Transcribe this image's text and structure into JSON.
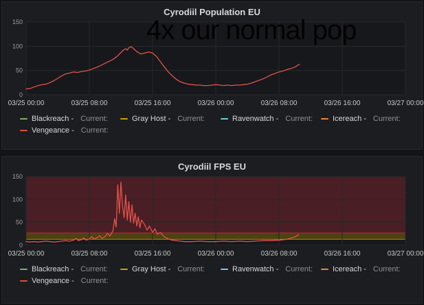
{
  "overlay_text": "4x our normal pop",
  "colors": {
    "page_bg": "#131416",
    "panel_bg": "#1b1d20",
    "plot_bg": "#17181b",
    "grid": "#26282c",
    "axis_text": "#9aa0a6",
    "x_axis_text": "#c8c9ca",
    "title_text": "#d8d9da",
    "line_red": "#e45349"
  },
  "panels": [
    {
      "title": "Cyrodiil Population EU",
      "legend": {
        "items": [
          {
            "label": "Blackreach -",
            "color": "#7eb26d",
            "current": "Current:",
            "value": ""
          },
          {
            "label": "Gray Host -",
            "color": "#cca300",
            "current": "Current:",
            "value": ""
          },
          {
            "label": "Ravenwatch -",
            "color": "#6ed0e0",
            "current": "Current:",
            "value": ""
          },
          {
            "label": "Icereach -",
            "color": "#ef843c",
            "current": "Current:",
            "value": ""
          },
          {
            "label": "Vengeance -",
            "color": "#e24d42",
            "current": "Current:",
            "value": ""
          }
        ]
      }
    },
    {
      "title": "Cyrodiil FPS EU",
      "legend": {
        "items": [
          {
            "label": "Blackreach -",
            "color": "#7eb26d",
            "current": "Current:",
            "value": ""
          },
          {
            "label": "Gray Host -",
            "color": "#cca300",
            "current": "Current:",
            "value": ""
          },
          {
            "label": "Ravenwatch -",
            "color": "#6ed0e0",
            "current": "Current:",
            "value": ""
          },
          {
            "label": "Icereach -",
            "color": "#ef843c",
            "current": "Current:",
            "value": ""
          },
          {
            "label": "Vengeance -",
            "color": "#e24d42",
            "current": "Current:",
            "value": ""
          }
        ]
      }
    }
  ],
  "chart_data": [
    {
      "type": "line",
      "title": "Cyrodiil Population EU",
      "annotation": "4x our normal pop",
      "x_ticks": [
        "03/25 00:00",
        "03/25 08:00",
        "03/25 16:00",
        "03/26 00:00",
        "03/26 08:00",
        "03/26 16:00",
        "03/27 00:00"
      ],
      "x_range_hours": [
        0,
        48
      ],
      "ylim": [
        0,
        150
      ],
      "y_ticks": [
        0,
        50,
        100,
        150
      ],
      "grid": true,
      "legend_position": "bottom",
      "series": [
        {
          "name": "Vengeance",
          "color": "#e45349",
          "points": [
            [
              0,
              12
            ],
            [
              0.5,
              13
            ],
            [
              1,
              16
            ],
            [
              1.5,
              19
            ],
            [
              2,
              21
            ],
            [
              2.5,
              22
            ],
            [
              3,
              25
            ],
            [
              3.5,
              29
            ],
            [
              4,
              34
            ],
            [
              4.5,
              39
            ],
            [
              5,
              43
            ],
            [
              5.5,
              45
            ],
            [
              6,
              47
            ],
            [
              6.5,
              46
            ],
            [
              7,
              48
            ],
            [
              7.5,
              49
            ],
            [
              8,
              51
            ],
            [
              8.5,
              54
            ],
            [
              9,
              57
            ],
            [
              9.5,
              61
            ],
            [
              10,
              65
            ],
            [
              10.5,
              69
            ],
            [
              11,
              73
            ],
            [
              11.5,
              79
            ],
            [
              12,
              87
            ],
            [
              12.3,
              92
            ],
            [
              12.6,
              95
            ],
            [
              12.8,
              92
            ],
            [
              13,
              97
            ],
            [
              13.3,
              99
            ],
            [
              13.6,
              95
            ],
            [
              14,
              89
            ],
            [
              14.5,
              84
            ],
            [
              15,
              86
            ],
            [
              15.5,
              88
            ],
            [
              16,
              86
            ],
            [
              16.5,
              79
            ],
            [
              17,
              68
            ],
            [
              17.5,
              57
            ],
            [
              18,
              47
            ],
            [
              18.5,
              39
            ],
            [
              19,
              32
            ],
            [
              19.5,
              27
            ],
            [
              20,
              24
            ],
            [
              20.5,
              22
            ],
            [
              21,
              21
            ],
            [
              21.5,
              20
            ],
            [
              22,
              20
            ],
            [
              22.5,
              19
            ],
            [
              23,
              19
            ],
            [
              23.5,
              20
            ],
            [
              24,
              21
            ],
            [
              24.5,
              20
            ],
            [
              25,
              19
            ],
            [
              25.5,
              20
            ],
            [
              26,
              19
            ],
            [
              26.5,
              20
            ],
            [
              27,
              20
            ],
            [
              27.5,
              21
            ],
            [
              28,
              22
            ],
            [
              28.5,
              24
            ],
            [
              29,
              27
            ],
            [
              29.5,
              30
            ],
            [
              30,
              33
            ],
            [
              30.5,
              37
            ],
            [
              31,
              41
            ],
            [
              31.5,
              44
            ],
            [
              32,
              47
            ],
            [
              32.5,
              49
            ],
            [
              33,
              52
            ],
            [
              33.5,
              54
            ],
            [
              34,
              57
            ],
            [
              34.3,
              60
            ],
            [
              34.6,
              63
            ]
          ]
        }
      ]
    },
    {
      "type": "line",
      "title": "Cyrodiil FPS EU",
      "x_ticks": [
        "03/25 00:00",
        "03/25 08:00",
        "03/25 16:00",
        "03/26 00:00",
        "03/26 08:00",
        "03/26 16:00",
        "03/27 00:00"
      ],
      "x_range_hours": [
        0,
        48
      ],
      "ylim": [
        0,
        150
      ],
      "y_ticks": [
        0,
        50,
        100,
        150
      ],
      "grid": true,
      "legend_position": "bottom",
      "thresholds": [
        {
          "from": 13,
          "to": 27,
          "color": "rgba(204,163,0,0.30)",
          "line_color": "rgba(204,163,0,0.8)"
        },
        {
          "from": 27,
          "to": 150,
          "color": "rgba(224,47,68,0.25)",
          "line_color": "rgba(224,47,68,0.6)"
        }
      ],
      "series": [
        {
          "name": "Vengeance",
          "color": "#e45349",
          "points": [
            [
              0,
              8
            ],
            [
              0.5,
              7
            ],
            [
              1,
              8
            ],
            [
              1.5,
              7
            ],
            [
              2,
              8
            ],
            [
              2.5,
              9
            ],
            [
              3,
              8
            ],
            [
              3.5,
              7
            ],
            [
              4,
              8
            ],
            [
              4.5,
              9
            ],
            [
              5,
              10
            ],
            [
              5.5,
              9
            ],
            [
              6,
              11
            ],
            [
              6.3,
              15
            ],
            [
              6.6,
              10
            ],
            [
              7,
              12
            ],
            [
              7.3,
              16
            ],
            [
              7.6,
              11
            ],
            [
              8,
              14
            ],
            [
              8.3,
              19
            ],
            [
              8.6,
              13
            ],
            [
              9,
              17
            ],
            [
              9.3,
              21
            ],
            [
              9.6,
              15
            ],
            [
              10,
              19
            ],
            [
              10.3,
              26
            ],
            [
              10.6,
              20
            ],
            [
              11,
              32
            ],
            [
              11.2,
              58
            ],
            [
              11.4,
              40
            ],
            [
              11.6,
              132
            ],
            [
              11.8,
              70
            ],
            [
              12,
              138
            ],
            [
              12.2,
              85
            ],
            [
              12.4,
              60
            ],
            [
              12.6,
              110
            ],
            [
              12.8,
              55
            ],
            [
              13,
              95
            ],
            [
              13.2,
              50
            ],
            [
              13.4,
              88
            ],
            [
              13.6,
              48
            ],
            [
              13.8,
              70
            ],
            [
              14,
              42
            ],
            [
              14.2,
              62
            ],
            [
              14.4,
              38
            ],
            [
              14.6,
              55
            ],
            [
              15,
              45
            ],
            [
              15.3,
              33
            ],
            [
              15.6,
              42
            ],
            [
              16,
              28
            ],
            [
              16.3,
              36
            ],
            [
              16.6,
              24
            ],
            [
              17,
              28
            ],
            [
              17.5,
              18
            ],
            [
              18,
              14
            ],
            [
              18.5,
              11
            ],
            [
              19,
              10
            ],
            [
              19.5,
              9
            ],
            [
              20,
              8
            ],
            [
              21,
              8
            ],
            [
              22,
              9
            ],
            [
              23,
              8
            ],
            [
              24,
              8
            ],
            [
              25,
              9
            ],
            [
              26,
              8
            ],
            [
              27,
              9
            ],
            [
              28,
              8
            ],
            [
              29,
              9
            ],
            [
              30,
              10
            ],
            [
              31,
              10
            ],
            [
              32,
              11
            ],
            [
              33,
              13
            ],
            [
              34,
              18
            ],
            [
              34.5,
              23
            ]
          ]
        }
      ]
    }
  ]
}
